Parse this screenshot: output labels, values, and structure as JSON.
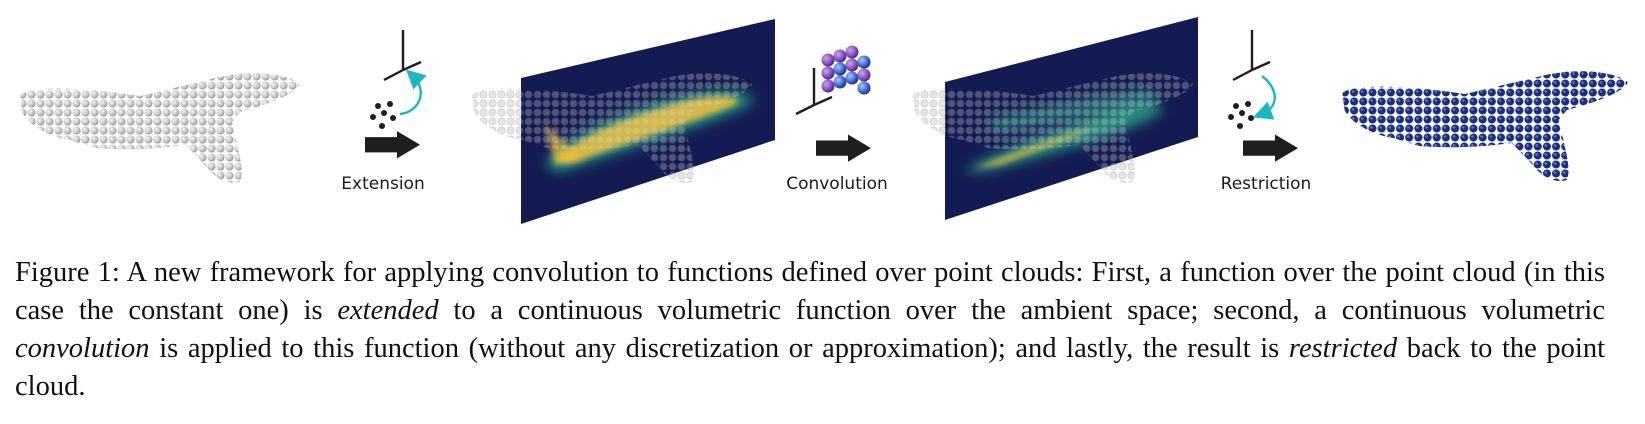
{
  "figure": {
    "steps": [
      {
        "label": "Extension"
      },
      {
        "label": "Convolution"
      },
      {
        "label": "Restriction"
      }
    ],
    "colors": {
      "point_gray": "#c8c8c8",
      "plane_navy": "#141b52",
      "arrow": "#1e1e1e",
      "axis_teal": "#1ab8c4",
      "kernel_purple": "#7a45b8",
      "heat_yellow": "#f2c03a",
      "heat_green": "#2aa58a"
    }
  },
  "caption": {
    "p1": "Figure 1: A new framework for applying convolution to functions defined over point clouds: First, a function over the point cloud (in this case the constant one) is ",
    "e1": "extended",
    "p2": " to a continuous volumetric function over the ambient space; second, a continuous volumetric ",
    "e2": "convolution",
    "p3": " is applied to this function (without any discretization or approximation); and lastly, the result is ",
    "e3": "restricted",
    "p4": " back to the point cloud."
  }
}
